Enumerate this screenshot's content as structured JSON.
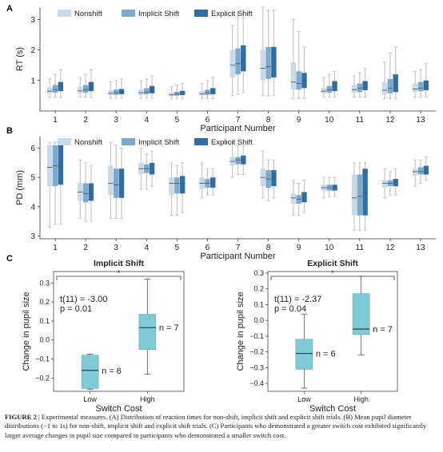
{
  "panels": {
    "a": "A",
    "b": "B",
    "c": "C"
  },
  "colors": {
    "nonshift": "#c9d9e8",
    "implicit": "#7da9cc",
    "explicit": "#2f6ea5",
    "teal": "#7ecbd6",
    "whisker": "#c6c6c6"
  },
  "chart_data": [
    {
      "type": "box",
      "ylabel": "RT (s)",
      "xlabel": "Participant Number",
      "ylim": [
        0,
        3.4
      ],
      "yticks": [
        1,
        2,
        3
      ],
      "categories": [
        "1",
        "2",
        "3",
        "4",
        "5",
        "6",
        "7",
        "8",
        "9",
        "10",
        "11",
        "12",
        "13"
      ],
      "series": [
        {
          "name": "Nonshift",
          "boxes": [
            {
              "min": 0.45,
              "q1": 0.58,
              "med": 0.65,
              "q3": 0.78,
              "max": 1.05
            },
            {
              "min": 0.45,
              "q1": 0.58,
              "med": 0.66,
              "q3": 0.8,
              "max": 1.1
            },
            {
              "min": 0.42,
              "q1": 0.52,
              "med": 0.58,
              "q3": 0.68,
              "max": 0.95
            },
            {
              "min": 0.42,
              "q1": 0.52,
              "med": 0.6,
              "q3": 0.7,
              "max": 1.0
            },
            {
              "min": 0.4,
              "q1": 0.48,
              "med": 0.53,
              "q3": 0.6,
              "max": 0.8
            },
            {
              "min": 0.4,
              "q1": 0.5,
              "med": 0.56,
              "q3": 0.65,
              "max": 0.9
            },
            {
              "min": 0.5,
              "q1": 1.1,
              "med": 1.5,
              "q3": 2.0,
              "max": 2.8
            },
            {
              "min": 0.5,
              "q1": 1.0,
              "med": 1.4,
              "q3": 2.0,
              "max": 3.4
            },
            {
              "min": 0.4,
              "q1": 0.7,
              "med": 0.95,
              "q3": 1.6,
              "max": 3.0
            },
            {
              "min": 0.45,
              "q1": 0.58,
              "med": 0.65,
              "q3": 0.75,
              "max": 1.1
            },
            {
              "min": 0.45,
              "q1": 0.6,
              "med": 0.7,
              "q3": 0.85,
              "max": 1.15
            },
            {
              "min": 0.4,
              "q1": 0.55,
              "med": 0.68,
              "q3": 0.95,
              "max": 1.6
            },
            {
              "min": 0.45,
              "q1": 0.62,
              "med": 0.72,
              "q3": 0.9,
              "max": 1.3
            }
          ]
        },
        {
          "name": "Implicit Shift",
          "boxes": [
            {
              "min": 0.45,
              "q1": 0.6,
              "med": 0.7,
              "q3": 0.85,
              "max": 1.2
            },
            {
              "min": 0.45,
              "q1": 0.6,
              "med": 0.7,
              "q3": 0.85,
              "max": 1.2
            },
            {
              "min": 0.42,
              "q1": 0.53,
              "med": 0.6,
              "q3": 0.7,
              "max": 1.0
            },
            {
              "min": 0.42,
              "q1": 0.55,
              "med": 0.62,
              "q3": 0.75,
              "max": 1.05
            },
            {
              "min": 0.4,
              "q1": 0.5,
              "med": 0.56,
              "q3": 0.63,
              "max": 0.85
            },
            {
              "min": 0.4,
              "q1": 0.52,
              "med": 0.6,
              "q3": 0.7,
              "max": 1.0
            },
            {
              "min": 0.55,
              "q1": 1.2,
              "med": 1.55,
              "q3": 2.05,
              "max": 3.2
            },
            {
              "min": 0.5,
              "q1": 1.05,
              "med": 1.45,
              "q3": 2.1,
              "max": 3.3
            },
            {
              "min": 0.4,
              "q1": 0.7,
              "med": 0.9,
              "q3": 1.3,
              "max": 2.6
            },
            {
              "min": 0.45,
              "q1": 0.6,
              "med": 0.7,
              "q3": 0.82,
              "max": 1.2
            },
            {
              "min": 0.45,
              "q1": 0.62,
              "med": 0.75,
              "q3": 0.9,
              "max": 1.25
            },
            {
              "min": 0.4,
              "q1": 0.58,
              "med": 0.75,
              "q3": 1.05,
              "max": 1.9
            },
            {
              "min": 0.45,
              "q1": 0.65,
              "med": 0.75,
              "q3": 0.95,
              "max": 1.35
            }
          ]
        },
        {
          "name": "Explicit Shift",
          "boxes": [
            {
              "min": 0.45,
              "q1": 0.65,
              "med": 0.8,
              "q3": 0.95,
              "max": 1.35
            },
            {
              "min": 0.45,
              "q1": 0.65,
              "med": 0.78,
              "q3": 0.95,
              "max": 1.35
            },
            {
              "min": 0.42,
              "q1": 0.55,
              "med": 0.62,
              "q3": 0.72,
              "max": 1.05
            },
            {
              "min": 0.42,
              "q1": 0.58,
              "med": 0.68,
              "q3": 0.82,
              "max": 1.15
            },
            {
              "min": 0.4,
              "q1": 0.52,
              "med": 0.58,
              "q3": 0.66,
              "max": 0.9
            },
            {
              "min": 0.4,
              "q1": 0.55,
              "med": 0.63,
              "q3": 0.75,
              "max": 1.1
            },
            {
              "min": 0.6,
              "q1": 1.3,
              "med": 1.65,
              "q3": 2.15,
              "max": 3.3
            },
            {
              "min": 0.5,
              "q1": 1.1,
              "med": 1.6,
              "q3": 2.1,
              "max": 3.3
            },
            {
              "min": 0.4,
              "q1": 0.75,
              "med": 1.0,
              "q3": 1.25,
              "max": 2.1
            },
            {
              "min": 0.45,
              "q1": 0.65,
              "med": 0.8,
              "q3": 0.98,
              "max": 1.3
            },
            {
              "min": 0.45,
              "q1": 0.68,
              "med": 0.8,
              "q3": 0.98,
              "max": 1.4
            },
            {
              "min": 0.4,
              "q1": 0.62,
              "med": 0.85,
              "q3": 1.2,
              "max": 2.1
            },
            {
              "min": 0.45,
              "q1": 0.68,
              "med": 0.82,
              "q3": 1.0,
              "max": 1.55
            }
          ]
        }
      ]
    },
    {
      "type": "box",
      "ylabel": "PD (mm)",
      "xlabel": "Participant Number",
      "ylim": [
        2.9,
        6.4
      ],
      "yticks": [
        3,
        4,
        5,
        6
      ],
      "categories": [
        "1",
        "2",
        "3",
        "4",
        "5",
        "6",
        "7",
        "8",
        "9",
        "10",
        "11",
        "12",
        "13"
      ],
      "series": [
        {
          "name": "Nonshift",
          "boxes": [
            {
              "min": 3.3,
              "q1": 4.7,
              "med": 5.35,
              "q3": 6.1,
              "max": 6.2
            },
            {
              "min": 3.6,
              "q1": 4.2,
              "med": 4.5,
              "q3": 4.8,
              "max": 5.6
            },
            {
              "min": 3.6,
              "q1": 4.4,
              "med": 4.8,
              "q3": 5.4,
              "max": 6.2
            },
            {
              "min": 4.6,
              "q1": 5.1,
              "med": 5.3,
              "q3": 5.5,
              "max": 6.0
            },
            {
              "min": 3.7,
              "q1": 4.4,
              "med": 4.8,
              "q3": 5.0,
              "max": 5.5
            },
            {
              "min": 4.3,
              "q1": 4.6,
              "med": 4.8,
              "q3": 5.0,
              "max": 5.5
            },
            {
              "min": 5.0,
              "q1": 5.4,
              "med": 5.55,
              "q3": 5.7,
              "max": 6.2
            },
            {
              "min": 4.3,
              "q1": 4.7,
              "med": 5.0,
              "q3": 5.3,
              "max": 5.9
            },
            {
              "min": 3.7,
              "q1": 4.1,
              "med": 4.3,
              "q3": 4.45,
              "max": 4.9
            },
            {
              "min": 4.3,
              "q1": 4.55,
              "med": 4.65,
              "q3": 4.75,
              "max": 5.0
            },
            {
              "min": 3.2,
              "q1": 3.7,
              "med": 4.3,
              "q3": 5.1,
              "max": 5.5
            },
            {
              "min": 4.3,
              "q1": 4.65,
              "med": 4.8,
              "q3": 4.9,
              "max": 5.3
            },
            {
              "min": 4.7,
              "q1": 5.05,
              "med": 5.2,
              "q3": 5.3,
              "max": 5.6
            }
          ]
        },
        {
          "name": "Implicit Shift",
          "boxes": [
            {
              "min": 3.4,
              "q1": 4.7,
              "med": 5.4,
              "q3": 6.1,
              "max": 6.2
            },
            {
              "min": 3.5,
              "q1": 4.15,
              "med": 4.45,
              "q3": 4.8,
              "max": 5.5
            },
            {
              "min": 3.6,
              "q1": 4.3,
              "med": 4.75,
              "q3": 5.3,
              "max": 6.1
            },
            {
              "min": 4.6,
              "q1": 5.15,
              "med": 5.3,
              "q3": 5.45,
              "max": 5.8
            },
            {
              "min": 3.7,
              "q1": 4.45,
              "med": 4.8,
              "q3": 5.0,
              "max": 5.4
            },
            {
              "min": 4.4,
              "q1": 4.65,
              "med": 4.8,
              "q3": 4.95,
              "max": 5.3
            },
            {
              "min": 5.1,
              "q1": 5.45,
              "med": 5.6,
              "q3": 5.7,
              "max": 6.1
            },
            {
              "min": 4.2,
              "q1": 4.65,
              "med": 4.95,
              "q3": 5.25,
              "max": 5.6
            },
            {
              "min": 3.7,
              "q1": 4.1,
              "med": 4.25,
              "q3": 4.4,
              "max": 4.8
            },
            {
              "min": 4.35,
              "q1": 4.55,
              "med": 4.65,
              "q3": 4.75,
              "max": 5.0
            },
            {
              "min": 3.2,
              "q1": 3.7,
              "med": 4.35,
              "q3": 5.1,
              "max": 5.5
            },
            {
              "min": 4.4,
              "q1": 4.7,
              "med": 4.8,
              "q3": 4.9,
              "max": 5.2
            },
            {
              "min": 4.8,
              "q1": 5.1,
              "med": 5.2,
              "q3": 5.35,
              "max": 5.6
            }
          ]
        },
        {
          "name": "Explicit Shift",
          "boxes": [
            {
              "min": 3.4,
              "q1": 4.75,
              "med": 5.35,
              "q3": 6.1,
              "max": 6.2
            },
            {
              "min": 3.5,
              "q1": 4.2,
              "med": 4.45,
              "q3": 4.8,
              "max": 5.4
            },
            {
              "min": 3.6,
              "q1": 4.3,
              "med": 4.75,
              "q3": 5.3,
              "max": 6.0
            },
            {
              "min": 4.7,
              "q1": 5.1,
              "med": 5.3,
              "q3": 5.5,
              "max": 5.9
            },
            {
              "min": 3.8,
              "q1": 4.45,
              "med": 4.8,
              "q3": 5.05,
              "max": 5.5
            },
            {
              "min": 4.4,
              "q1": 4.65,
              "med": 4.85,
              "q3": 5.0,
              "max": 5.3
            },
            {
              "min": 5.1,
              "q1": 5.45,
              "med": 5.6,
              "q3": 5.75,
              "max": 6.1
            },
            {
              "min": 4.3,
              "q1": 4.7,
              "med": 4.95,
              "q3": 5.25,
              "max": 5.6
            },
            {
              "min": 3.8,
              "q1": 4.15,
              "med": 4.3,
              "q3": 4.5,
              "max": 4.9
            },
            {
              "min": 4.35,
              "q1": 4.55,
              "med": 4.65,
              "q3": 4.75,
              "max": 5.0
            },
            {
              "min": 3.2,
              "q1": 3.7,
              "med": 4.5,
              "q3": 5.3,
              "max": 5.5
            },
            {
              "min": 4.4,
              "q1": 4.7,
              "med": 4.85,
              "q3": 4.95,
              "max": 5.3
            },
            {
              "min": 4.9,
              "q1": 5.1,
              "med": 5.25,
              "q3": 5.4,
              "max": 5.7
            }
          ]
        }
      ]
    },
    {
      "type": "box",
      "title": "Implicit Shift",
      "xlabel": "Switch Cost",
      "ylabel": "Change in pupil size",
      "ylim": [
        -0.27,
        0.36
      ],
      "yticks": [
        -0.2,
        -0.1,
        0.0,
        0.1,
        0.2,
        0.3
      ],
      "ytick_labels": [
        "−0.2",
        "−0.1",
        "0.0",
        "0.1",
        "0.2",
        "0.3"
      ],
      "categories": [
        "Low",
        "High"
      ],
      "boxes": [
        {
          "min": -0.26,
          "q1": -0.255,
          "med": -0.16,
          "q3": -0.08,
          "max": -0.075,
          "n_label": "n = 6"
        },
        {
          "min": -0.18,
          "q1": -0.05,
          "med": 0.065,
          "q3": 0.135,
          "max": 0.32,
          "n_label": "n = 7"
        }
      ],
      "stat": {
        "t": "t(11) = -3.00",
        "p": "p = 0.01"
      },
      "sig": "*"
    },
    {
      "type": "box",
      "title": "Explicit Shift",
      "xlabel": "Switch Cost",
      "ylabel": "Change in pupil size",
      "ylim": [
        -0.45,
        0.31
      ],
      "yticks": [
        -0.4,
        -0.3,
        -0.2,
        -0.1,
        0.0,
        0.1,
        0.2,
        0.3
      ],
      "ytick_labels": [
        "−0.4",
        "−0.3",
        "−0.2",
        "−0.1",
        "0.0",
        "0.1",
        "0.2",
        "0.3"
      ],
      "categories": [
        "Low",
        "High"
      ],
      "boxes": [
        {
          "min": -0.43,
          "q1": -0.31,
          "med": -0.21,
          "q3": -0.12,
          "max": 0.04,
          "n_label": "n = 6"
        },
        {
          "min": -0.22,
          "q1": -0.09,
          "med": -0.055,
          "q3": 0.17,
          "max": 0.28,
          "n_label": "n = 7"
        }
      ],
      "stat": {
        "t": "t(11) = -2.37",
        "p": "p = 0.04"
      },
      "sig": "*"
    }
  ],
  "caption": {
    "lead": "FIGURE 2",
    "sep": " | ",
    "text": "Experimental measures. (A) Distribution of reaction times for non-shift, implicit shift and explicit shift trials. (B) Mean pupil diameter distributions (−1 to 1s) for non-shift, implicit shift and explicit shift trials. (C) Participants who demonstrated a greater switch cost exhibited significantly larger average changes in pupil size compared to participants who demonstrated a smaller switch cost."
  }
}
